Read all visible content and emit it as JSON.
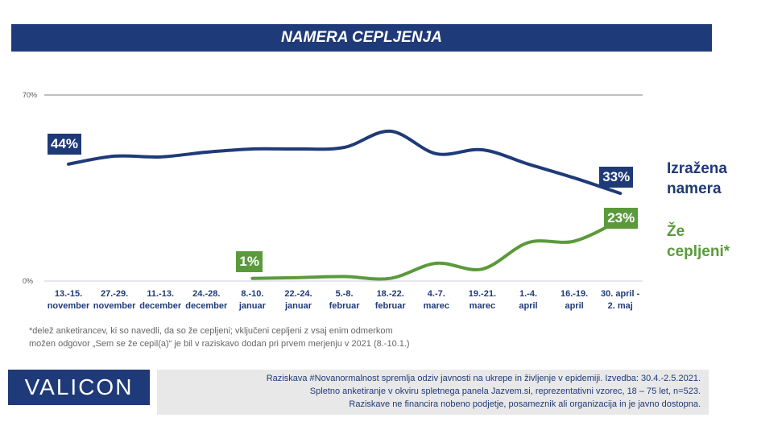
{
  "title": "NAMERA CEPLJENJA",
  "chart_data": {
    "type": "line",
    "categories": [
      "13.-15. november",
      "27.-29. november",
      "11.-13. december",
      "24.-28. december",
      "8.-10. januar",
      "22.-24. januar",
      "5.-8. februar",
      "18.-22. februar",
      "4.-7. marec",
      "19.-21. marec",
      "1.-4. april",
      "16.-19. april",
      "30. april - 2. maj"
    ],
    "category_lines": [
      [
        "13.-15.",
        "november"
      ],
      [
        "27.-29.",
        "november"
      ],
      [
        "11.-13.",
        "december"
      ],
      [
        "24.-28.",
        "december"
      ],
      [
        "8.-10.",
        "januar"
      ],
      [
        "22.-24.",
        "januar"
      ],
      [
        "5.-8.",
        "februar"
      ],
      [
        "18.-22.",
        "februar"
      ],
      [
        "4.-7.",
        "marec"
      ],
      [
        "19.-21.",
        "marec"
      ],
      [
        "1.-4.",
        "april"
      ],
      [
        "16.-19.",
        "april"
      ],
      [
        "30. april -",
        "2. maj"
      ]
    ],
    "ylim": [
      0,
      70
    ],
    "yticks": [
      "0%",
      "70%"
    ],
    "series": [
      {
        "name": "Izražena namera",
        "name_lines": [
          "Izražena",
          "namera"
        ],
        "color": "#1f3a78",
        "values": [
          44,
          47,
          46.7,
          48.5,
          49.7,
          49.7,
          50.3,
          56.4,
          47.9,
          49.4,
          44,
          38.8,
          33
        ],
        "labels": {
          "first": "44%",
          "last": "33%"
        }
      },
      {
        "name": "Že cepljeni*",
        "name_lines": [
          "Že",
          "cepljeni*"
        ],
        "color": "#5a9a3c",
        "values": [
          null,
          null,
          null,
          null,
          1,
          1.3,
          1.7,
          1,
          6.7,
          4.5,
          14.5,
          15,
          23
        ],
        "labels": {
          "first": "1%",
          "last": "23%"
        }
      }
    ],
    "grid": true
  },
  "footnote": [
    "*delež anketirancev, ki so navedli, da so že cepljeni; vključeni cepljeni z vsaj enim odmerkom",
    "možen  odgovor „Sem  se že cepil(a)“ je bil v raziskavo dodan pri prvem merjenju v 2021 (8.-10.1.)"
  ],
  "logo": "VALICON",
  "info": [
    "Raziskava #Novanormalnost spremlja odziv javnosti na ukrepe in življenje v epidemiji. Izvedba: 30.4.-2.5.2021.",
    "Spletno anketiranje v okviru spletnega panela Jazvem.si, reprezentativni vzorec, 18 – 75 let, n=523.",
    "Raziskave ne financira nobeno podjetje, posameznik ali organizacija in je javno dostopna."
  ]
}
